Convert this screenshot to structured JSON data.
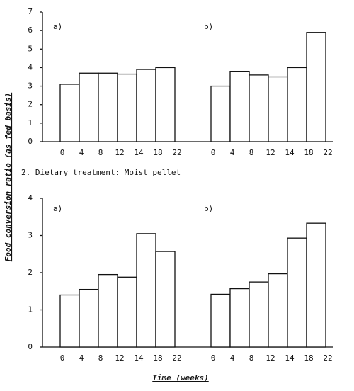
{
  "figure": {
    "ylabel": "Food conversion ratio (as fed basis)",
    "xlabel": "Time (weeks)",
    "caption": "2. Dietary treatment: Moist pellet"
  },
  "chart_data": [
    {
      "type": "bar",
      "panel": "a)",
      "bin_edges": [
        "0",
        "4",
        "8",
        "12",
        "14",
        "18",
        "22"
      ],
      "values": [
        3.1,
        3.7,
        3.7,
        3.65,
        3.9,
        4.0
      ],
      "ylim": [
        0,
        7
      ],
      "yticks": [
        0,
        1,
        2,
        3,
        4,
        5,
        6,
        7
      ],
      "color": "#ffffff"
    },
    {
      "type": "bar",
      "panel": "b)",
      "bin_edges": [
        "0",
        "4",
        "8",
        "12",
        "14",
        "18",
        "22"
      ],
      "values": [
        3.0,
        3.8,
        3.6,
        3.5,
        4.0,
        5.9
      ],
      "ylim": [
        0,
        7
      ],
      "color": "#ffffff"
    },
    {
      "type": "bar",
      "panel": "a)",
      "bin_edges": [
        "0",
        "4",
        "8",
        "12",
        "14",
        "18",
        "22"
      ],
      "values": [
        1.4,
        1.55,
        1.95,
        1.88,
        3.05,
        2.57
      ],
      "ylim": [
        0,
        4
      ],
      "yticks": [
        0,
        1,
        2,
        3,
        4
      ],
      "color": "#ffffff"
    },
    {
      "type": "bar",
      "panel": "b)",
      "bin_edges": [
        "0",
        "4",
        "8",
        "12",
        "14",
        "18",
        "22"
      ],
      "values": [
        1.42,
        1.57,
        1.75,
        1.97,
        2.93,
        3.33
      ],
      "ylim": [
        0,
        4
      ],
      "color": "#ffffff"
    }
  ]
}
